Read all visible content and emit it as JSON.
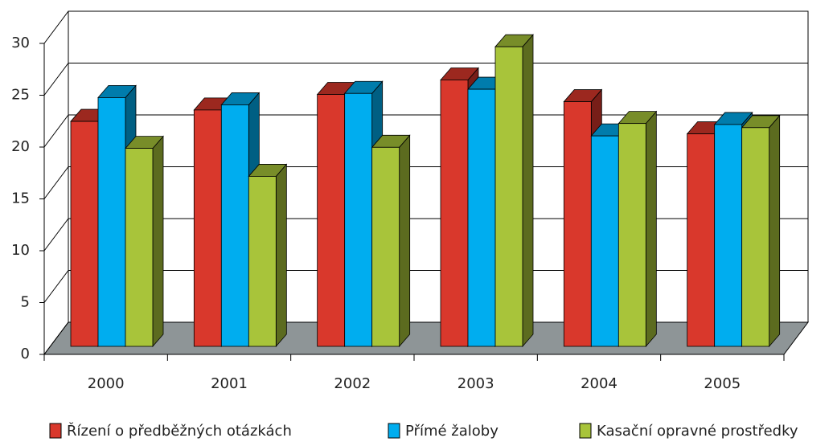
{
  "chart_data": {
    "type": "bar3d",
    "categories": [
      "2000",
      "2001",
      "2002",
      "2003",
      "2004",
      "2005"
    ],
    "series": [
      {
        "name": "Řízení o předběžných otázkách",
        "color": "#d9382c",
        "values": [
          21.7,
          22.8,
          24.3,
          25.7,
          23.6,
          20.5
        ]
      },
      {
        "name": "Přímé žaloby",
        "color": "#00adef",
        "values": [
          24.0,
          23.3,
          24.4,
          24.8,
          20.3,
          21.4
        ]
      },
      {
        "name": "Kasační opravné prostředky",
        "color": "#a8c43a",
        "values": [
          19.1,
          16.4,
          19.2,
          28.9,
          21.5,
          21.1
        ]
      }
    ],
    "ylim": [
      0,
      30
    ],
    "yticks": [
      0,
      5,
      10,
      15,
      20,
      25,
      30
    ],
    "grid": true
  }
}
